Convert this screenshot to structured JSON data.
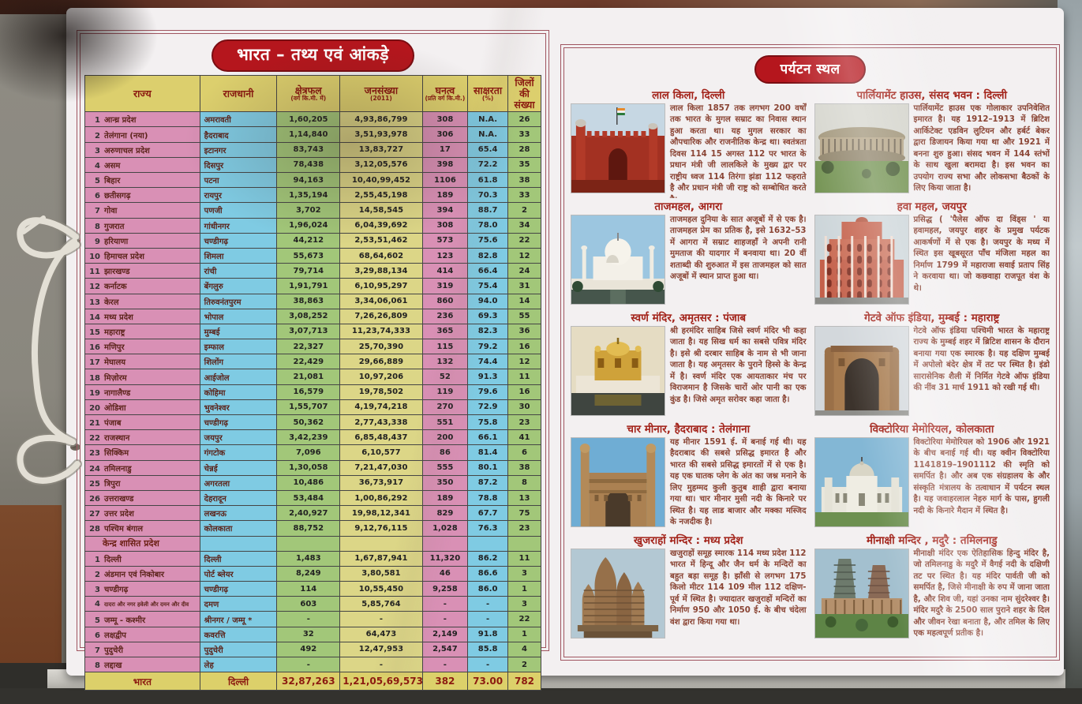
{
  "colors": {
    "banner_red": "#b5161d",
    "frame_red": "#a05560",
    "header_yellow": "#dccf6d",
    "col_pink": "#d990b5",
    "col_blue": "#7fcbe3",
    "col_green": "#a2c779",
    "col_pale_yellow": "#dcd687",
    "total_yellow": "#dcd06a",
    "heading_text": "#a3231a",
    "body_text": "#8a4434"
  },
  "left_panel": {
    "title": "भारत – तथ्य एवं आंकड़े",
    "table": {
      "headers": [
        {
          "label": "राज्य",
          "sub": ""
        },
        {
          "label": "राजधानी",
          "sub": ""
        },
        {
          "label": "क्षेत्रफल",
          "sub": "(वर्ग कि.मी. में)"
        },
        {
          "label": "जनसंख्या",
          "sub": "(2011)"
        },
        {
          "label": "घनत्व",
          "sub": "(प्रति वर्ग कि.मी.)"
        },
        {
          "label": "साक्षरता",
          "sub": "(%)"
        },
        {
          "label": "जिलों की संख्या",
          "sub": ""
        }
      ],
      "states": [
        {
          "no": "1",
          "name": "आन्ध्र प्रदेश",
          "capital": "अमरावती",
          "area": "1,60,205",
          "population": "4,93,86,799",
          "density": "308",
          "literacy": "N.A.",
          "districts": "26"
        },
        {
          "no": "2",
          "name": "तेलंगाना (नया)",
          "capital": "हैदराबाद",
          "area": "1,14,840",
          "population": "3,51,93,978",
          "density": "306",
          "literacy": "N.A.",
          "districts": "33"
        },
        {
          "no": "3",
          "name": "अरुणाचल प्रदेश",
          "capital": "इटानगर",
          "area": "83,743",
          "population": "13,83,727",
          "density": "17",
          "literacy": "65.4",
          "districts": "28"
        },
        {
          "no": "4",
          "name": "असम",
          "capital": "दिसपुर",
          "area": "78,438",
          "population": "3,12,05,576",
          "density": "398",
          "literacy": "72.2",
          "districts": "35"
        },
        {
          "no": "5",
          "name": "बिहार",
          "capital": "पटना",
          "area": "94,163",
          "population": "10,40,99,452",
          "density": "1106",
          "literacy": "61.8",
          "districts": "38"
        },
        {
          "no": "6",
          "name": "छतीसगढ़",
          "capital": "रायपुर",
          "area": "1,35,194",
          "population": "2,55,45,198",
          "density": "189",
          "literacy": "70.3",
          "districts": "33"
        },
        {
          "no": "7",
          "name": "गोवा",
          "capital": "पणजी",
          "area": "3,702",
          "population": "14,58,545",
          "density": "394",
          "literacy": "88.7",
          "districts": "2"
        },
        {
          "no": "8",
          "name": "गुजरात",
          "capital": "गांधीनगर",
          "area": "1,96,024",
          "population": "6,04,39,692",
          "density": "308",
          "literacy": "78.0",
          "districts": "34"
        },
        {
          "no": "9",
          "name": "हरियाणा",
          "capital": "चण्डीगढ़",
          "area": "44,212",
          "population": "2,53,51,462",
          "density": "573",
          "literacy": "75.6",
          "districts": "22"
        },
        {
          "no": "10",
          "name": "हिमाचल प्रदेश",
          "capital": "शिमला",
          "area": "55,673",
          "population": "68,64,602",
          "density": "123",
          "literacy": "82.8",
          "districts": "12"
        },
        {
          "no": "11",
          "name": "झारखण्ड",
          "capital": "रांची",
          "area": "79,714",
          "population": "3,29,88,134",
          "density": "414",
          "literacy": "66.4",
          "districts": "24"
        },
        {
          "no": "12",
          "name": "कर्नाटक",
          "capital": "बेंगलुरु",
          "area": "1,91,791",
          "population": "6,10,95,297",
          "density": "319",
          "literacy": "75.4",
          "districts": "31"
        },
        {
          "no": "13",
          "name": "केरल",
          "capital": "तिरुवनंतपुरम",
          "area": "38,863",
          "population": "3,34,06,061",
          "density": "860",
          "literacy": "94.0",
          "districts": "14"
        },
        {
          "no": "14",
          "name": "मध्य प्रदेश",
          "capital": "भोपाल",
          "area": "3,08,252",
          "population": "7,26,26,809",
          "density": "236",
          "literacy": "69.3",
          "districts": "55"
        },
        {
          "no": "15",
          "name": "महाराष्ट्र",
          "capital": "मुम्बई",
          "area": "3,07,713",
          "population": "11,23,74,333",
          "density": "365",
          "literacy": "82.3",
          "districts": "36"
        },
        {
          "no": "16",
          "name": "मणिपुर",
          "capital": "इम्फाल",
          "area": "22,327",
          "population": "25,70,390",
          "density": "115",
          "literacy": "79.2",
          "districts": "16"
        },
        {
          "no": "17",
          "name": "मेघालय",
          "capital": "शिलोंग",
          "area": "22,429",
          "population": "29,66,889",
          "density": "132",
          "literacy": "74.4",
          "districts": "12"
        },
        {
          "no": "18",
          "name": "मिज़ोरम",
          "capital": "आईजोल",
          "area": "21,081",
          "population": "10,97,206",
          "density": "52",
          "literacy": "91.3",
          "districts": "11"
        },
        {
          "no": "19",
          "name": "नागालैण्ड",
          "capital": "कोहिमा",
          "area": "16,579",
          "population": "19,78,502",
          "density": "119",
          "literacy": "79.6",
          "districts": "16"
        },
        {
          "no": "20",
          "name": "ओडिशा",
          "capital": "भुवनेश्वर",
          "area": "1,55,707",
          "population": "4,19,74,218",
          "density": "270",
          "literacy": "72.9",
          "districts": "30"
        },
        {
          "no": "21",
          "name": "पंजाब",
          "capital": "चण्डीगढ़",
          "area": "50,362",
          "population": "2,77,43,338",
          "density": "551",
          "literacy": "75.8",
          "districts": "23"
        },
        {
          "no": "22",
          "name": "राजस्थान",
          "capital": "जयपुर",
          "area": "3,42,239",
          "population": "6,85,48,437",
          "density": "200",
          "literacy": "66.1",
          "districts": "41"
        },
        {
          "no": "23",
          "name": "सिक्किम",
          "capital": "गंगटोक",
          "area": "7,096",
          "population": "6,10,577",
          "density": "86",
          "literacy": "81.4",
          "districts": "6"
        },
        {
          "no": "24",
          "name": "तमिलनाडु",
          "capital": "चेन्नई",
          "area": "1,30,058",
          "population": "7,21,47,030",
          "density": "555",
          "literacy": "80.1",
          "districts": "38"
        },
        {
          "no": "25",
          "name": "त्रिपुरा",
          "capital": "अगरतला",
          "area": "10,486",
          "population": "36,73,917",
          "density": "350",
          "literacy": "87.2",
          "districts": "8"
        },
        {
          "no": "26",
          "name": "उत्तराखण्ड",
          "capital": "देहरादून",
          "area": "53,484",
          "population": "1,00,86,292",
          "density": "189",
          "literacy": "78.8",
          "districts": "13"
        },
        {
          "no": "27",
          "name": "उत्तर प्रदेश",
          "capital": "लखनऊ",
          "area": "2,40,927",
          "population": "19,98,12,341",
          "density": "829",
          "literacy": "67.7",
          "districts": "75"
        },
        {
          "no": "28",
          "name": "पश्चिम बंगाल",
          "capital": "कोलकाता",
          "area": "88,752",
          "population": "9,12,76,115",
          "density": "1,028",
          "literacy": "76.3",
          "districts": "23"
        }
      ],
      "ut_section_label": "केन्द्र शासित प्रदेश",
      "union_territories": [
        {
          "no": "1",
          "name": "दिल्ली",
          "capital": "दिल्ली",
          "area": "1,483",
          "population": "1,67,87,941",
          "density": "11,320",
          "literacy": "86.2",
          "districts": "11"
        },
        {
          "no": "2",
          "name": "अंडमान एवं निकोबार",
          "capital": "पोर्ट ब्लेयर",
          "area": "8,249",
          "population": "3,80,581",
          "density": "46",
          "literacy": "86.6",
          "districts": "3"
        },
        {
          "no": "3",
          "name": "चण्डीगढ़",
          "capital": "चण्डीगढ़",
          "area": "114",
          "population": "10,55,450",
          "density": "9,258",
          "literacy": "86.0",
          "districts": "1"
        },
        {
          "no": "4",
          "name": "दादरा और नगर हवेली और दमन और दीव",
          "capital": "दमण",
          "area": "603",
          "population": "5,85,764",
          "density": "-",
          "literacy": "-",
          "districts": "3",
          "small": true
        },
        {
          "no": "5",
          "name": "जम्मू - कश्मीर",
          "capital": "श्रीनगर / जम्मू *",
          "area": "-",
          "population": "-",
          "density": "-",
          "literacy": "-",
          "districts": "22"
        },
        {
          "no": "6",
          "name": "लक्षद्वीप",
          "capital": "कवरत्ति",
          "area": "32",
          "population": "64,473",
          "density": "2,149",
          "literacy": "91.8",
          "districts": "1"
        },
        {
          "no": "7",
          "name": "पुदुचेरी",
          "capital": "पुदुचेरी",
          "area": "492",
          "population": "12,47,953",
          "density": "2,547",
          "literacy": "85.8",
          "districts": "4"
        },
        {
          "no": "8",
          "name": "लद्दाख",
          "capital": "लेह",
          "area": "-",
          "population": "-",
          "density": "-",
          "literacy": "-",
          "districts": "2"
        }
      ],
      "total": {
        "name": "भारत",
        "capital": "दिल्ली",
        "area": "32,87,263",
        "population": "1,21,05,69,573",
        "density": "382",
        "literacy": "73.00",
        "districts": "782"
      }
    }
  },
  "right_panel": {
    "title": "पर्यटन स्थल",
    "places": [
      {
        "icon": "red-fort",
        "name": "लाल किला, दिल्ली",
        "description": "लाल किला 1857 तक लगभग 200 वर्षों तक भारत के मुगल सम्राट का निवास स्थान हुआ करता था। यह मुगल सरकार का औपचारिक और राजनीतिक केन्द्र था। स्वतंत्रता दिवस 114 15 अगस्त 112 पर भारत के प्रधान मंत्री जी लालकिले के मुख्य द्वार पर राष्ट्रीय ध्वज 114 तिरंगा झंडा 112 फहराते है और प्रधान मंत्री जी राष्ट्र को सम्बोधित करते है।"
      },
      {
        "icon": "parliament",
        "name": "पार्लियामेंट हाउस, संसद भवन : दिल्ली",
        "description": "पार्लियामेंट हाउस एक गोलाकार उपनिवेशित इमारत है। यह 1912–1913 में ब्रिटिश आर्किटेक्ट एडविन लुटियन और हर्बर्ट बेकर द्वारा डिजायन किया गया था और 1921 में बनना शुरु हुआ। संसद भवन में 144 स्तंभों के साथ खुला बरामदा है। इस भवन का उपयोग राज्य सभा और लोकसभा बैठकों के लिए किया जाता है।"
      },
      {
        "icon": "taj-mahal",
        "name": "ताजमहल, आगरा",
        "description": "ताजमहल दुनिया के सात अजूबों में से एक है। ताजमहल प्रेम का प्रतिक है, इसे 1632–53 में आगरा में सम्राट शाहजहाँ ने अपनी रानी मुमताज की यादगार में बनवाया था। 20 वीं शताब्दी की शुरुआत में इस ताजमहल को सात अजूबों में स्थान प्राप्त हुआ था।"
      },
      {
        "icon": "hawa-mahal",
        "name": "हवा महल, जयपुर",
        "description": "प्रसिद्ध ( 'पैलेस ऑफ दा विंड्स ' या हवामहल, जयपुर शहर के प्रमुख पर्यटक आकर्षणों में से एक है। जयपुर के मध्य में स्थित इस खूबसूरत पाँच मंजिला महल का निर्माण 1799 में महाराजा सवाई प्रताप सिंह ने करवाया था। जो कछवाहा राजपूत वंश के थे।"
      },
      {
        "icon": "golden-temple",
        "name": "स्वर्ण मंदिर, अमृतसर : पंजाब",
        "description": "श्री हरमंदिर साहिब जिसे स्वर्ण मंदिर भी कहा जाता है। यह सिख धर्म का सबसे पवित्र मंदिर है। इसे श्री दरबार साहिब के नाम से भी जाना जाता है। यह अमृतसर के पुराने हिस्से के केन्द्र में है। स्वर्ण मंदिर एक आयताकार मंच पर विराजमान है जिसके चारों ओर पानी का एक कुंड है। जिसे अमृत सरोवर कहा जाता है।"
      },
      {
        "icon": "gateway-of-india",
        "name": "गेटवे ऑफ इंडिया, मुम्बई : महाराष्ट्र",
        "description": "गेटवे ऑफ इंडिया पश्चिमी भारत के महाराष्ट्र राज्य के मुम्बई शहर में ब्रिटिश शासन के दौरान बनाया गया एक स्मारक है। यह दक्षिण मुम्बई में अपोलो बंदेर क्षेत्र में तट पर स्थित है। इंडो सारासेनिक शैली में निर्मित गेटवे ऑफ इंडिया की नींव 31 मार्च 1911 को रखी गई थी।"
      },
      {
        "icon": "charminar",
        "name": "चार मीनार, हैदराबाद : तेलंगाना",
        "description": "यह मीनार 1591 ई. में बनाई गई थी। यह हैदराबाद की सबसे प्रसिद्ध इमारत है और भारत की सबसे प्रसिद्ध इमारतों में से एक है। यह एक घातक प्लेग के अंत का जश्न मनाने के लिए मुहम्मद कुली कुतुब शाही द्वारा बनाया गया था। चार मीनार मुसी नदी के किनारे पर स्थित है। यह लाड बाजार और मक्का मस्जिद के नजदीक है।"
      },
      {
        "icon": "victoria-memorial",
        "name": "विक्टोरिया मेमोरियल, कोलकाता",
        "description": "विक्टोरिया मेमोरियल को 1906 और 1921 के बीच बनाई गई थी। यह क्वीन विक्टोरिया 1141819–1901112 की स्मृति को समर्पित है। और अब एक संग्रहालय के और संस्कृति मंत्रालय के तत्वाधान में पर्यटन स्थल है। यह जवाहरलाल नेहरु मार्ग के पास, हुगली नदी के किनारे मैदान में स्थित है।"
      },
      {
        "icon": "khajuraho",
        "name": "खुजराहों मन्दिर : मध्य प्रदेश",
        "description": "खजुराहों समूह स्मारक 114 मध्य प्रदेश 112 भारत में हिन्दू और जैन धर्म के मन्दिरों का बहुत बड़ा समूह है। झाँसी से लगभग 175 किलो मीटर 114 109 मील 112 दक्षिण-पूर्व में स्थित है। ज्यादातर खजुराहों मन्दिरों का निर्माण 950 और 1050 ई. के बीच चंदेला वंश द्वारा किया गया था।"
      },
      {
        "icon": "meenakshi-temple",
        "name": "मीनाक्षी मन्दिर , मदुरै : तमिलनाडु",
        "description": "मीनाक्षी मंदिर एक ऐतिहासिक हिन्दु मंदिर है, जो तमिलनाडु के मदुरै में वैगई नदी के दक्षिणी तट पर स्थित है। यह मंदिर पार्वती जी को समर्पित है, जिसे मीनाक्षी के रुप में जाना जाता है, और शिव जी, यहां उनका नाम सुंदरेश्वर है। मंदिर मदुरै के 2500 साल पुराने शहर के दिल और जीवन रेखा बनाता है, और तमिल के लिए एक महत्वपूर्ण प्रतीक है।"
      }
    ]
  }
}
